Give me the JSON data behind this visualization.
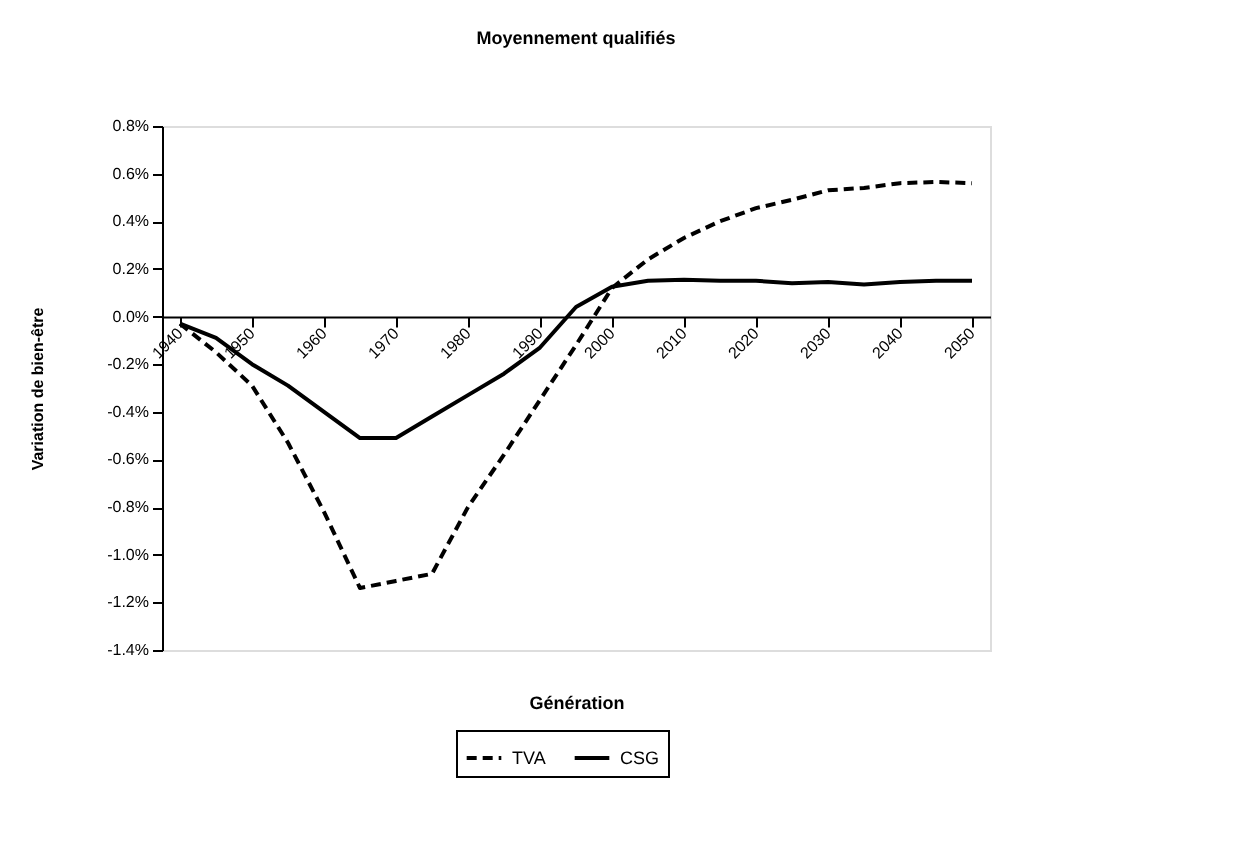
{
  "chart_data": {
    "type": "line",
    "title": "Moyennement qualifiés",
    "xlabel": "Génération",
    "ylabel": "Variation de bien-être",
    "x": [
      1940,
      1945,
      1950,
      1955,
      1960,
      1965,
      1970,
      1975,
      1980,
      1985,
      1990,
      1995,
      2000,
      2005,
      2010,
      2015,
      2020,
      2025,
      2030,
      2035,
      2040,
      2045,
      2050
    ],
    "series": [
      {
        "name": "TVA",
        "color": "#000000",
        "line_style": "dashed",
        "values": [
          -0.03,
          -0.15,
          -0.29,
          -0.53,
          -0.82,
          -1.14,
          -1.11,
          -1.08,
          -0.8,
          -0.58,
          -0.35,
          -0.12,
          0.12,
          0.24,
          0.33,
          0.4,
          0.455,
          0.49,
          0.53,
          0.54,
          0.56,
          0.565,
          0.56
        ]
      },
      {
        "name": "CSG",
        "color": "#000000",
        "line_style": "solid",
        "values": [
          -0.03,
          -0.09,
          -0.2,
          -0.29,
          -0.4,
          -0.51,
          -0.51,
          -0.42,
          -0.33,
          -0.24,
          -0.13,
          0.04,
          0.125,
          0.15,
          0.155,
          0.15,
          0.15,
          0.14,
          0.145,
          0.135,
          0.145,
          0.15,
          0.15
        ]
      }
    ],
    "xlim": [
      1937.5,
      2052.5
    ],
    "xticks": [
      1940,
      1950,
      1960,
      1970,
      1980,
      1990,
      2000,
      2010,
      2020,
      2030,
      2040,
      2050
    ],
    "ylim": [
      -1.4,
      0.8
    ],
    "yticks": [
      {
        "value": -1.4,
        "label": "-1.4%"
      },
      {
        "value": -1.2,
        "label": "-1.2%"
      },
      {
        "value": -1.0,
        "label": "-1.0%"
      },
      {
        "value": -0.8,
        "label": "-0.8%"
      },
      {
        "value": -0.6,
        "label": "-0.6%"
      },
      {
        "value": -0.4,
        "label": "-0.4%"
      },
      {
        "value": -0.2,
        "label": "-0.2%"
      },
      {
        "value": 0,
        "label": "0.0%"
      },
      {
        "value": 0.2,
        "label": "0.2%"
      },
      {
        "value": 0.4,
        "label": "0.4%"
      },
      {
        "value": 0.6,
        "label": "0.6%"
      },
      {
        "value": 0.8,
        "label": "0.8%"
      }
    ],
    "grid": false,
    "legend": "bottom",
    "marker": "none"
  }
}
